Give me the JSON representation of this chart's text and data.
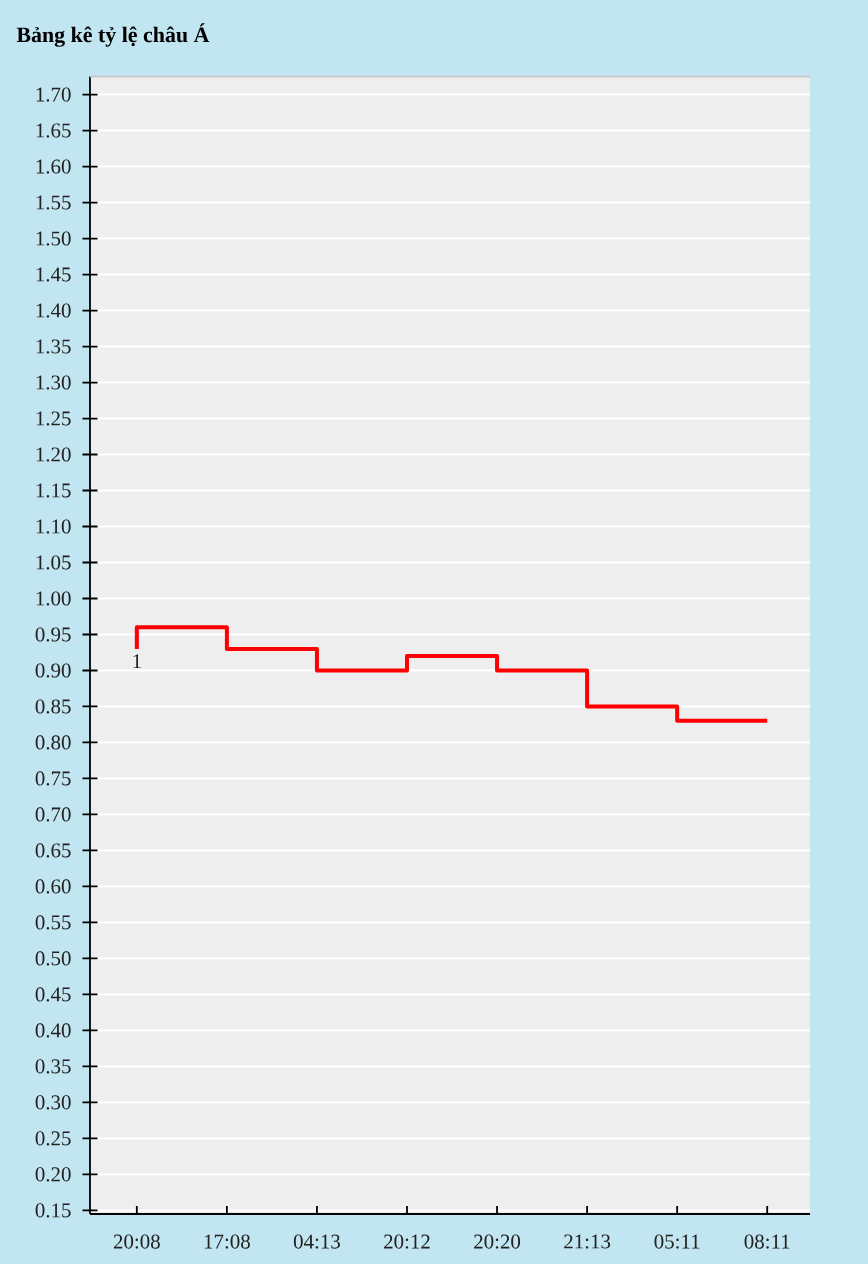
{
  "chart_data": {
    "type": "step",
    "title": "Bảng kê tỷ lệ châu Á",
    "categories": [
      "20:08",
      "17:08",
      "04:13",
      "20:12",
      "20:20",
      "21:13",
      "05:11",
      "08:11"
    ],
    "series": [
      {
        "color": "#ff0000",
        "values": [
          0.93,
          0.96,
          0.93,
          0.9,
          0.92,
          0.9,
          0.85,
          0.83
        ]
      }
    ],
    "ylim": [
      0.145,
      1.725
    ],
    "yticks": [
      0.15,
      {
        "value": 0.2,
        "label": "0.20"
      },
      0.25,
      {
        "value": 0.3,
        "label": "0.30"
      },
      0.35,
      {
        "value": 0.4,
        "label": "0.40"
      },
      0.45,
      {
        "value": 0.5,
        "label": "0.50"
      },
      0.55,
      {
        "value": 0.6,
        "label": "0.60"
      },
      0.65,
      {
        "value": 0.7,
        "label": "0.70"
      },
      0.75,
      {
        "value": 0.8,
        "label": "0.80"
      },
      0.85,
      {
        "value": 0.9,
        "label": "0.90"
      },
      0.95,
      {
        "value": 1.0,
        "label": "1.00"
      },
      1.05,
      {
        "value": 1.1,
        "label": "1.10"
      },
      1.15,
      {
        "value": 1.2,
        "label": "1.20"
      },
      1.25,
      {
        "value": 1.3,
        "label": "1.30"
      },
      1.35,
      {
        "value": 1.4,
        "label": "1.40"
      },
      1.45,
      {
        "value": 1.5,
        "label": "1.50"
      },
      1.55,
      {
        "value": 1.6,
        "label": "1.60"
      },
      1.65,
      {
        "value": 1.7,
        "label": "1.70"
      }
    ],
    "grid": "y",
    "marker": "none",
    "line_style": "solid",
    "annotations": [
      {
        "text": "1",
        "x": "20:08",
        "y": 0.93
      }
    ]
  }
}
